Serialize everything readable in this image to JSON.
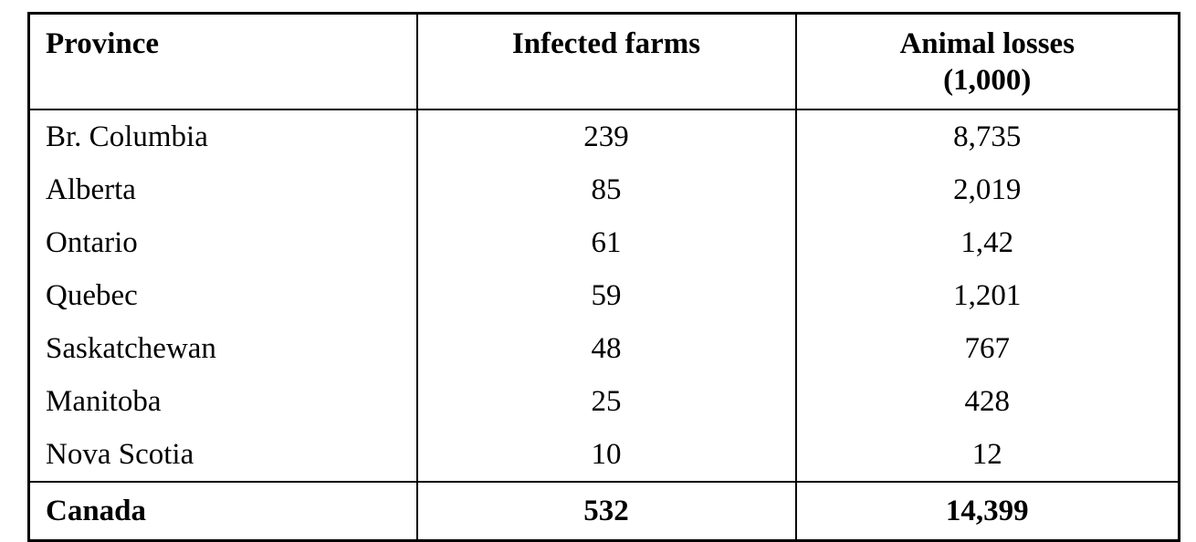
{
  "table": {
    "columns": [
      {
        "label": "Province"
      },
      {
        "label": "Infected farms"
      },
      {
        "label": "Animal losses",
        "sublabel": "(1,000)"
      }
    ],
    "rows": [
      {
        "province": "Br. Columbia",
        "infected_farms": "239",
        "animal_losses": "8,735"
      },
      {
        "province": "Alberta",
        "infected_farms": "85",
        "animal_losses": "2,019"
      },
      {
        "province": "Ontario",
        "infected_farms": "61",
        "animal_losses": "1,42"
      },
      {
        "province": "Quebec",
        "infected_farms": "59",
        "animal_losses": "1,201"
      },
      {
        "province": "Saskatchewan",
        "infected_farms": "48",
        "animal_losses": "767"
      },
      {
        "province": "Manitoba",
        "infected_farms": "25",
        "animal_losses": "428"
      },
      {
        "province": "Nova Scotia",
        "infected_farms": "10",
        "animal_losses": "12"
      }
    ],
    "footer": {
      "province": "Canada",
      "infected_farms": "532",
      "animal_losses": "14,399"
    },
    "colors": {
      "border": "#000000",
      "text": "#000000",
      "background": "#ffffff"
    }
  }
}
